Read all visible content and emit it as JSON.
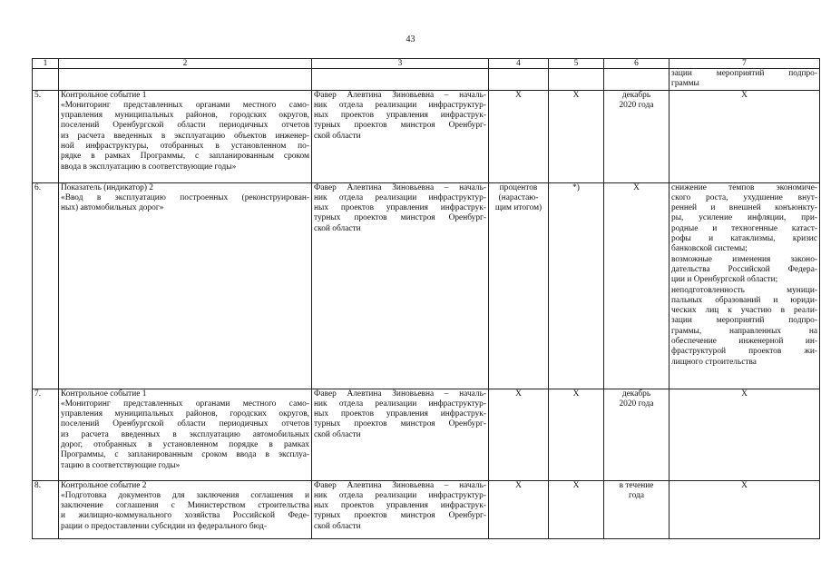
{
  "page_number": "43",
  "table": {
    "headers": [
      "1",
      "2",
      "3",
      "4",
      "5",
      "6",
      "7"
    ],
    "rows": [
      {
        "cells": [
          [],
          [],
          [],
          [],
          [],
          [],
          [
            "зации мероприятий подпро-",
            "граммы"
          ]
        ],
        "height": 0
      },
      {
        "cells": [
          [
            "5."
          ],
          [
            "Контрольное событие 1|",
            "«Мониторинг представленных органами местного само-",
            "управления муниципальных районов, городских округов,",
            "поселений Оренбургской области периодичных отчетов",
            "из расчета введенных в эксплуатацию объектов инженер-",
            "ной инфраструктуры, отобранных в установленном по-",
            "рядке в рамках Программы, с запланированным сроком",
            "ввода в эксплуатацию в соответствующие годы»|"
          ],
          [
            "Фавер Алевтина Зиновьевна – началь-",
            "ник отдела реализации инфраструктур-",
            "ных проектов управления инфраструк-",
            "турных проектов минстроя Оренбург-",
            "ской области|"
          ],
          [
            "Х"
          ],
          [
            "Х"
          ],
          [
            "декабрь",
            "2020 года"
          ],
          [
            "Х"
          ]
        ]
      },
      {
        "cells": [
          [
            "6."
          ],
          [
            "Показатель (индикатор) 2|",
            "«Ввод в эксплуатацию построенных (реконструирован-",
            "ных) автомобильных дорог»|"
          ],
          [
            "Фавер Алевтина Зиновьевна – началь-",
            "ник отдела реализации инфраструктур-",
            "ных проектов управления инфраструк-",
            "турных проектов минстроя Оренбург-",
            "ской области|"
          ],
          [
            "процентов",
            "(нарастаю-",
            "щим итогом)"
          ],
          [
            "*)"
          ],
          [
            "Х"
          ],
          [
            "снижение темпов экономиче-",
            "ского роста, ухудшение внут-",
            "ренней и внешней конъюнкту-",
            "ры, усиление инфляции, при-",
            "родные и техногенные катаст-",
            "рофы и катаклизмы, кризис",
            "банковской системы;|",
            "возможные изменения законо-",
            "дательства Российской Федера-",
            "ции и Оренбургской области;|",
            "неподготовленность муници-",
            "пальных образований и юриди-",
            "ческих лиц к участию в реали-",
            "зации мероприятий подпро-",
            "граммы, направленных на",
            "обеспечение инженерной ин-",
            "фраструктурой проектов жи-",
            "лищного строительства|"
          ]
        ]
      },
      {
        "cells": [
          [
            "7."
          ],
          [
            "Контрольное событие 1|",
            "«Мониторинг представленных органами местного само-",
            "управления муниципальных районов, городских округов,",
            "поселений Оренбургской области периодичных отчетов",
            "из расчета введенных в эксплуатацию автомобильных",
            "дорог, отобранных в установленном порядке в рамках",
            "Программы, с запланированным сроком ввода в эксплуа-",
            "тацию в соответствующие годы»|"
          ],
          [
            "Фавер Алевтина Зиновьевна – началь-",
            "ник отдела реализации инфраструктур-",
            "ных проектов управления инфраструк-",
            "турных проектов минстроя Оренбург-",
            "ской области|"
          ],
          [
            "Х"
          ],
          [
            "Х"
          ],
          [
            "декабрь",
            "2020 года"
          ],
          [
            "Х"
          ]
        ]
      },
      {
        "cells": [
          [
            "8."
          ],
          [
            "Контрольное событие 2|",
            "«Подготовка документов для заключения соглашения и",
            "заключение соглашения с Министерством строительства",
            "и жилищно-коммунального хозяйства Российской Феде-",
            "рации о предоставлении субсидии из федерального бюд-"
          ],
          [
            "Фавер Алевтина Зиновьевна – началь-",
            "ник отдела реализации инфраструктур-",
            "ных проектов управления инфраструк-",
            "турных проектов минстроя Оренбург-",
            "ской области|"
          ],
          [
            "Х"
          ],
          [
            "Х"
          ],
          [
            "в течение",
            "года"
          ],
          [
            "Х"
          ]
        ]
      }
    ]
  }
}
